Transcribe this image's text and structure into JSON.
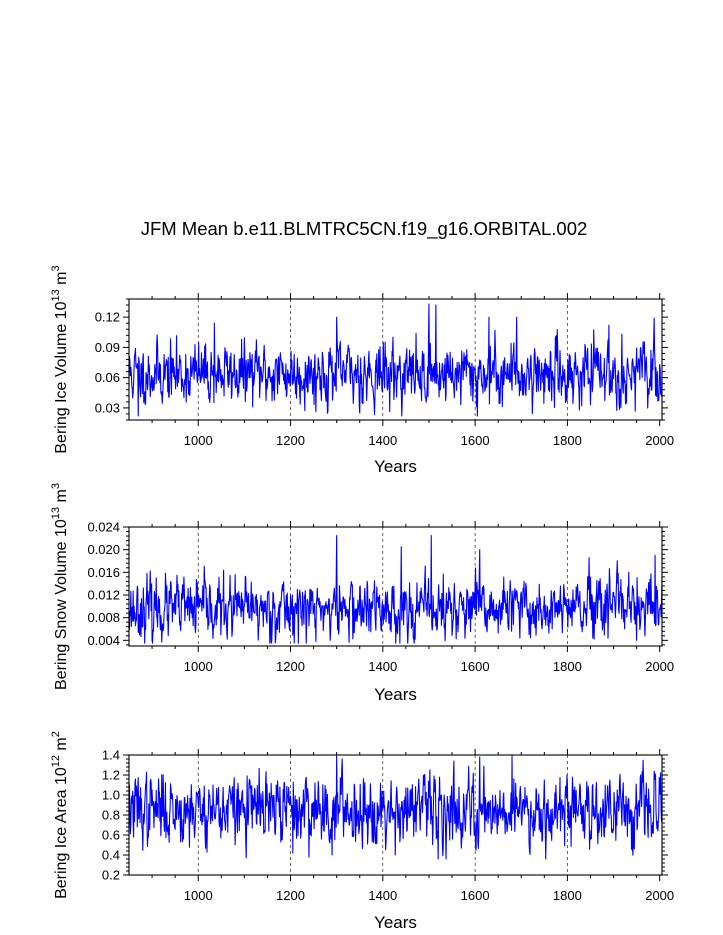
{
  "title": "JFM Mean b.e11.BLMTRC5CN.f19_g16.ORBITAL.002",
  "colors": {
    "line": "#0000ff",
    "axis": "#000000",
    "grid": "#000000"
  },
  "chart_data": [
    {
      "type": "line",
      "ylabel": "Bering Ice Volume 10",
      "ylabel_exp": "13",
      "ylabel_unit": " m",
      "ylabel_unit_exp": "3",
      "xlabel": "Years",
      "xlim": [
        850,
        2005
      ],
      "ylim": [
        0.018,
        0.138
      ],
      "xticks": [
        1000,
        1200,
        1400,
        1600,
        1800,
        2000
      ],
      "yticks": [
        0.03,
        0.06,
        0.09,
        0.12
      ],
      "ytick_labels": [
        "0.03",
        "0.06",
        "0.09",
        "0.12"
      ],
      "grid_x": [
        1000,
        1200,
        1400,
        1600,
        1800
      ],
      "series": [
        {
          "name": "Bering Ice Volume",
          "x_start": 850,
          "x_end": 2005,
          "mean": 0.064,
          "spread": 0.015,
          "min": 0.022,
          "max": 0.133,
          "seed": 11,
          "peaks": [
            [
              1500,
              0.133
            ],
            [
              1515,
              0.132
            ],
            [
              1300,
              0.12
            ],
            [
              1630,
              0.12
            ],
            [
              1690,
              0.12
            ],
            [
              1035,
              0.114
            ],
            [
              1890,
              0.112
            ],
            [
              1605,
              0.022
            ],
            [
              870,
              0.022
            ]
          ]
        }
      ]
    },
    {
      "type": "line",
      "ylabel": "Bering Snow Volume 10",
      "ylabel_exp": "13",
      "ylabel_unit": " m",
      "ylabel_unit_exp": "3",
      "xlabel": "Years",
      "xlim": [
        850,
        2005
      ],
      "ylim": [
        0.003,
        0.024
      ],
      "xticks": [
        1000,
        1200,
        1400,
        1600,
        1800,
        2000
      ],
      "yticks": [
        0.004,
        0.008,
        0.012,
        0.016,
        0.02,
        0.024
      ],
      "ytick_labels": [
        "0.004",
        "0.008",
        "0.012",
        "0.016",
        "0.020",
        "0.024"
      ],
      "grid_x": [
        1000,
        1200,
        1400,
        1600,
        1800
      ],
      "series": [
        {
          "name": "Bering Snow Volume",
          "x_start": 850,
          "x_end": 2005,
          "mean": 0.0095,
          "spread": 0.0026,
          "min": 0.0035,
          "max": 0.0225,
          "seed": 23,
          "peaks": [
            [
              1300,
              0.0225
            ],
            [
              1505,
              0.0225
            ],
            [
              1440,
              0.0205
            ],
            [
              1610,
              0.02
            ],
            [
              1990,
              0.019
            ],
            [
              1950,
              0.004
            ],
            [
              900,
              0.004
            ]
          ]
        }
      ]
    },
    {
      "type": "line",
      "ylabel": "Bering Ice Area 10",
      "ylabel_exp": "12",
      "ylabel_unit": " m",
      "ylabel_unit_exp": "2",
      "xlabel": "Years",
      "xlim": [
        850,
        2005
      ],
      "ylim": [
        0.2,
        1.4
      ],
      "xticks": [
        1000,
        1200,
        1400,
        1600,
        1800,
        2000
      ],
      "yticks": [
        0.2,
        0.4,
        0.6,
        0.8,
        1.0,
        1.2,
        1.4
      ],
      "ytick_labels": [
        "0.2",
        "0.4",
        "0.6",
        "0.8",
        "1.0",
        "1.2",
        "1.4"
      ],
      "grid_x": [
        1000,
        1200,
        1400,
        1600,
        1800
      ],
      "series": [
        {
          "name": "Bering Ice Area",
          "x_start": 850,
          "x_end": 2005,
          "mean": 0.86,
          "spread": 0.17,
          "min": 0.36,
          "max": 1.4,
          "seed": 37,
          "peaks": [
            [
              1300,
              1.39
            ],
            [
              1610,
              1.38
            ],
            [
              1680,
              1.39
            ],
            [
              1520,
              0.36
            ],
            [
              1290,
              0.4
            ],
            [
              1205,
              0.42
            ],
            [
              1945,
              0.46
            ]
          ]
        }
      ]
    }
  ]
}
